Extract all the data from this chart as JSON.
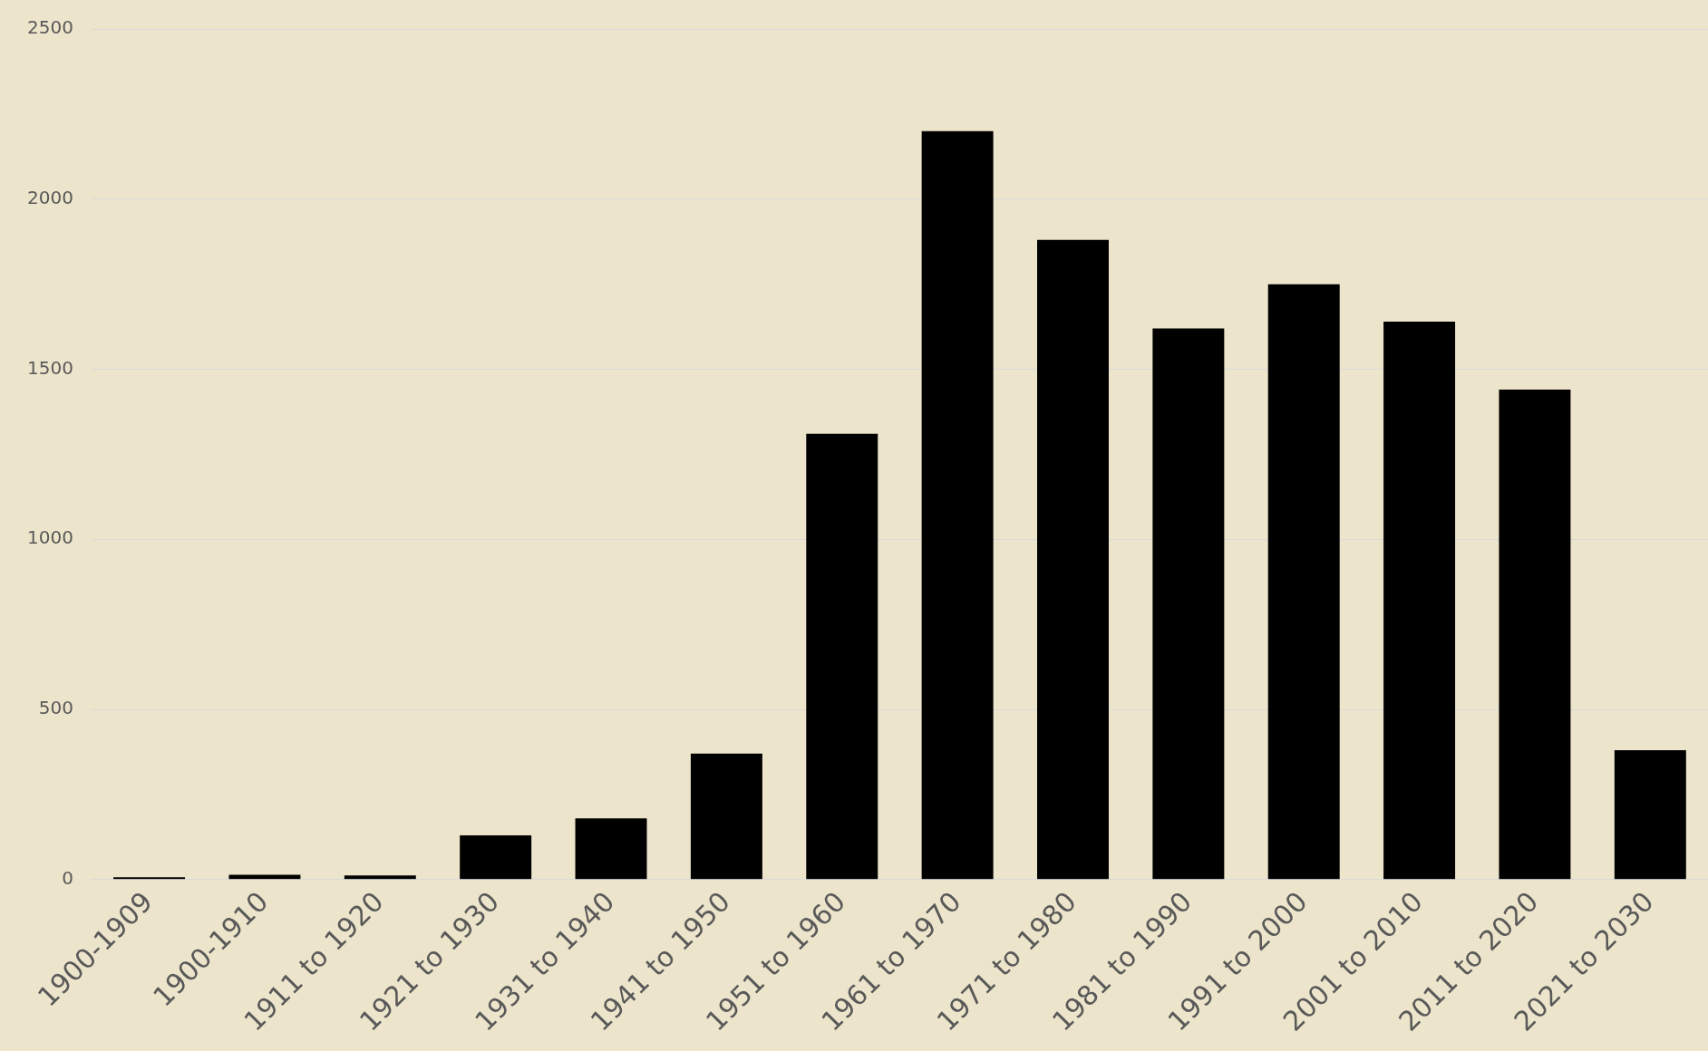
{
  "chart_data": {
    "type": "bar",
    "categories": [
      "1900-1909",
      "1900-1910",
      "1911 to 1920",
      "1921 to 1930",
      "1931 to 1940",
      "1941 to 1950",
      "1951 to 1960",
      "1961 to 1970",
      "1971 to 1980",
      "1981 to 1990",
      "1991 to 2000",
      "2001 to 2010",
      "2011 to 2020",
      "2021 to 2030"
    ],
    "values": [
      7,
      14,
      12,
      130,
      180,
      370,
      1310,
      2200,
      1880,
      1620,
      1750,
      1640,
      1440,
      380
    ],
    "color": "#000000",
    "ylim": [
      0,
      2500
    ],
    "yticks": [
      0,
      500,
      1000,
      1500,
      2000,
      2500
    ],
    "grid": "y"
  }
}
